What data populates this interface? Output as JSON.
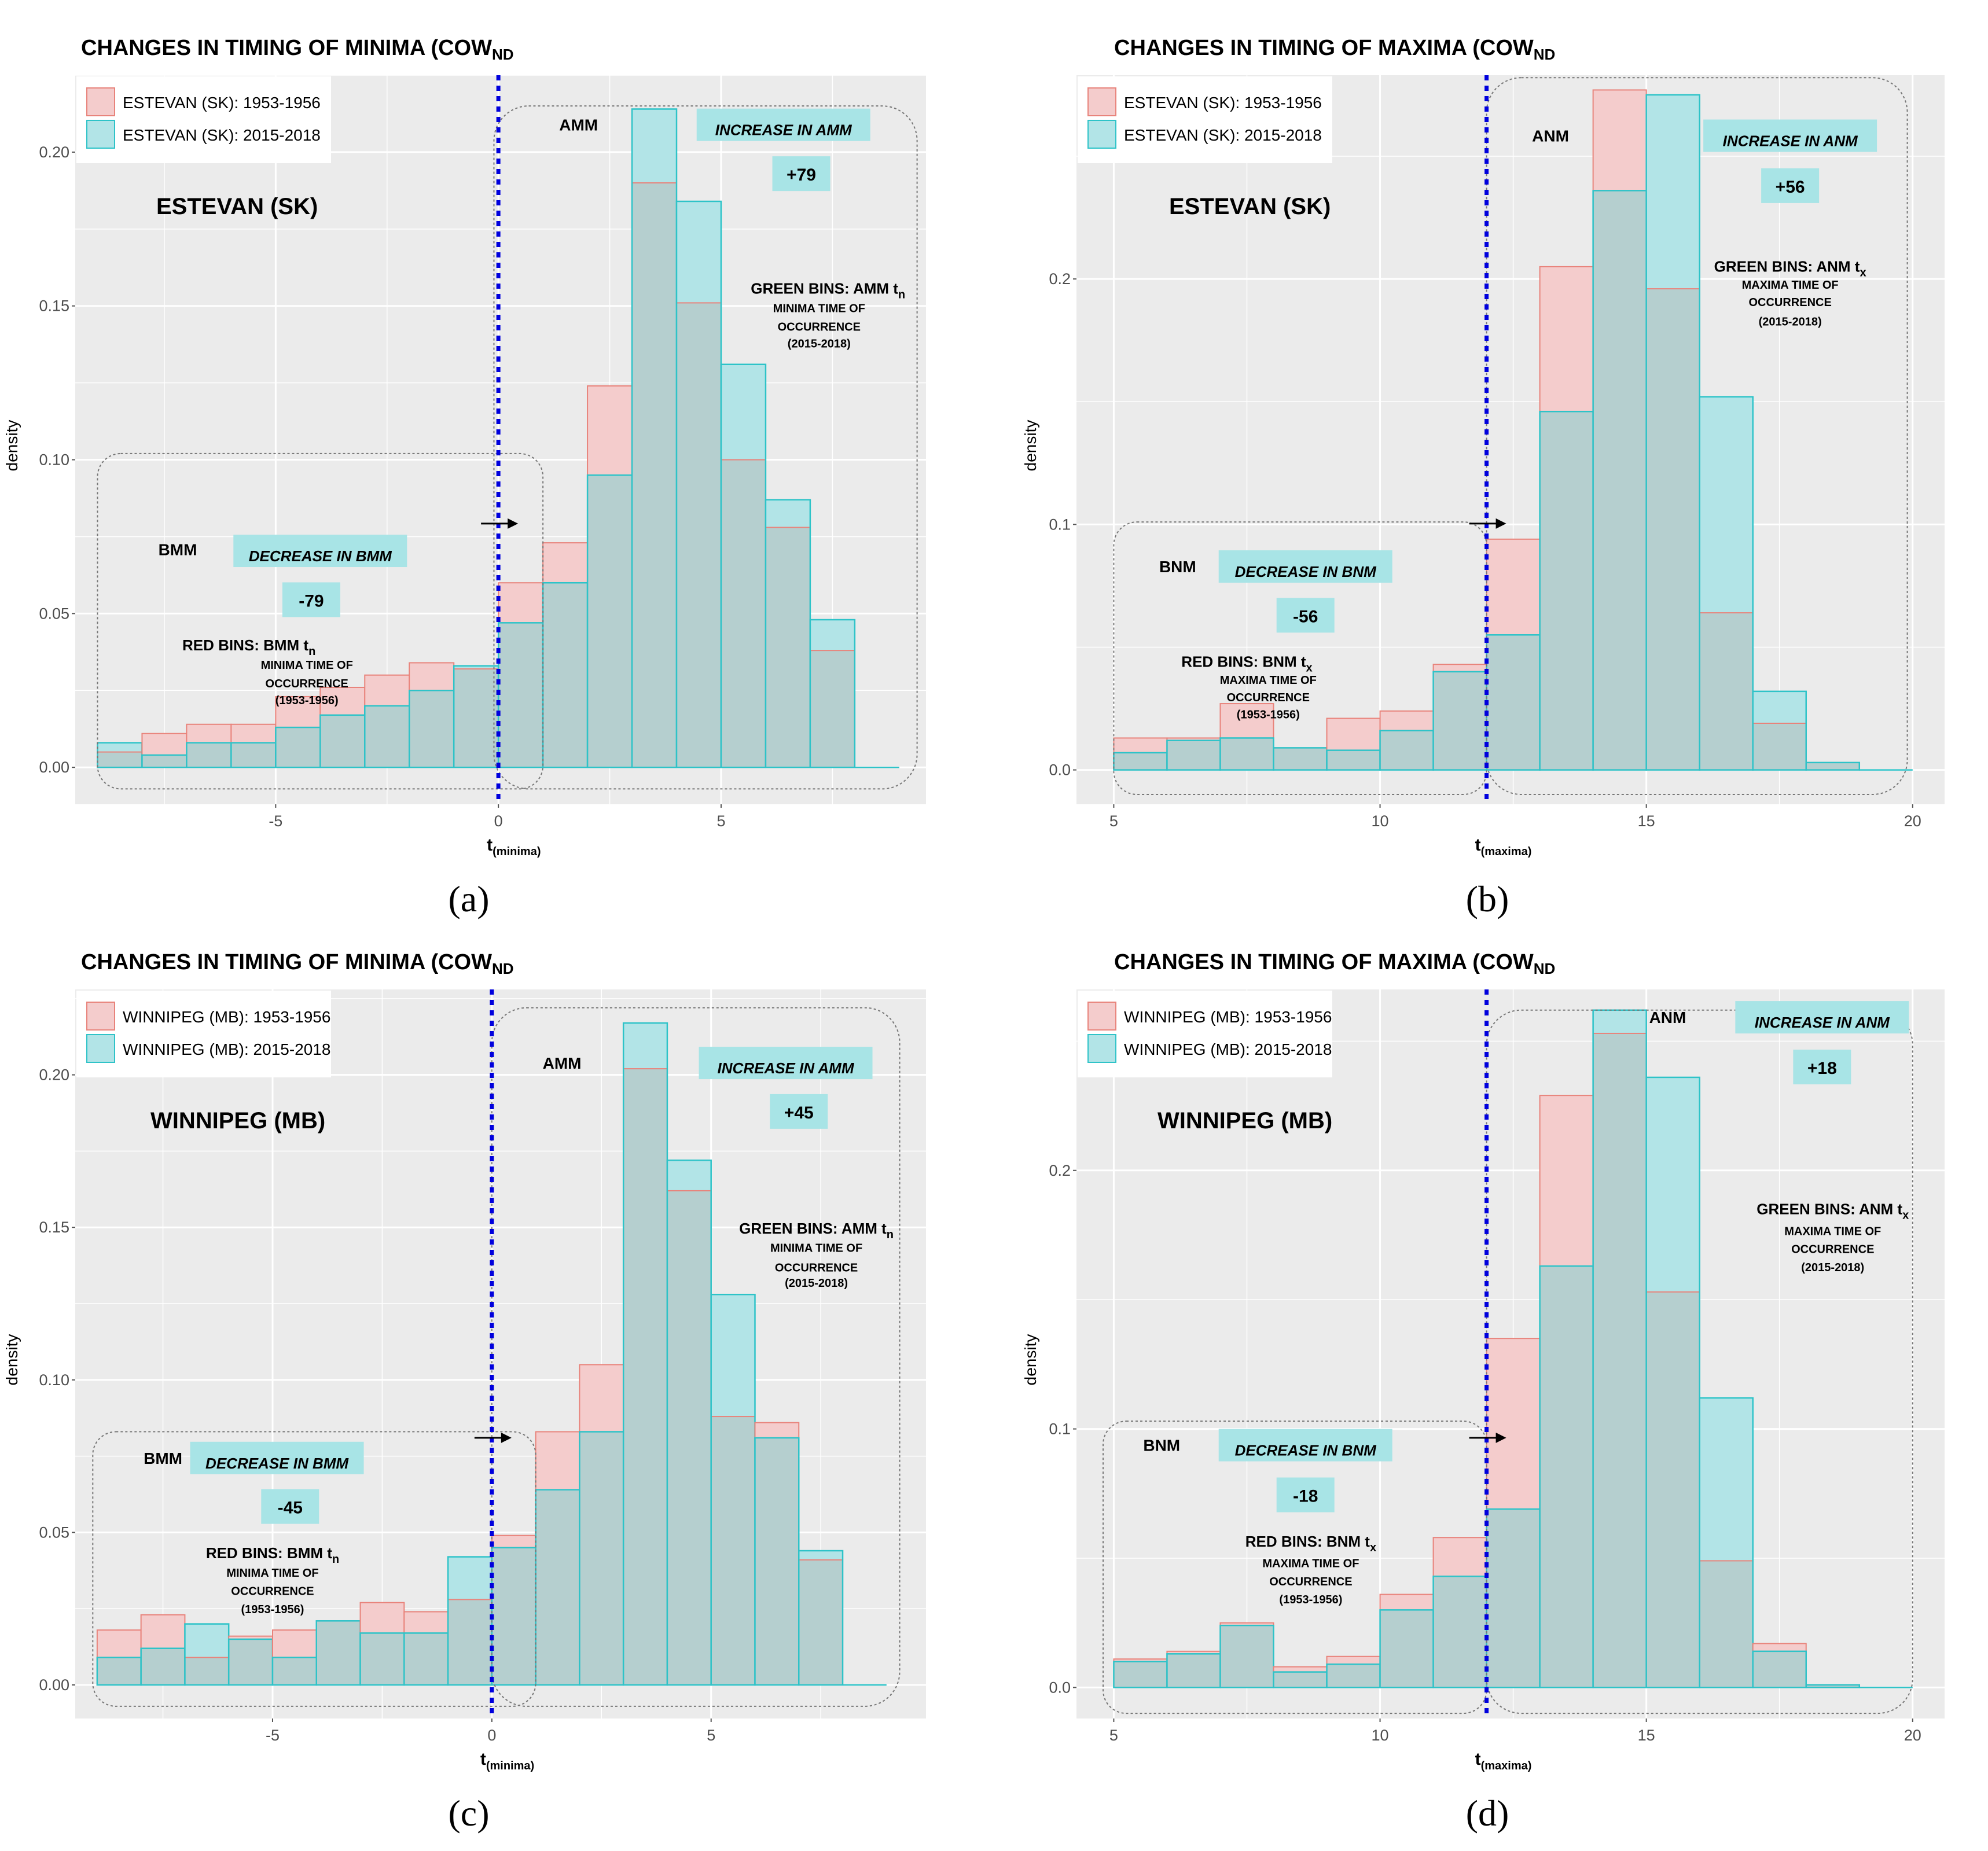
{
  "colors": {
    "red_fill": "#f4cccc",
    "red_line": "#e8837b",
    "cyan_fill": "#b2e4e7",
    "cyan_line": "#2ec3c8",
    "overlap_fill": "#b5cfcf",
    "panel_bg": "#ebebeb",
    "grid": "#ffffff",
    "vline": "#0000dd",
    "callout": "#a8e4e6"
  },
  "chart_data": [
    {
      "type": "bar",
      "panel": "(a)",
      "title": "CHANGES IN TIMING OF MINIMA (COW",
      "title_sub": "ND",
      "station": "ESTEVAN (SK)",
      "xlabel": "t",
      "xlabel_sub": "(minima)",
      "ylabel": "density",
      "xlim": [
        -9.5,
        9.6
      ],
      "ylim": [
        -0.012,
        0.225
      ],
      "xticks": [
        -5,
        0,
        5
      ],
      "xtick_labels": [
        "-5",
        "0",
        "5"
      ],
      "yticks": [
        0,
        0.05,
        0.1,
        0.15,
        0.2
      ],
      "ytick_labels": [
        "0.00",
        "0.05",
        "0.10",
        "0.15",
        "0.20"
      ],
      "bin_start": -9.0,
      "bin_width": 1.0,
      "x_end": 9.0,
      "vline_x": 0,
      "series": [
        {
          "name": "ESTEVAN (SK): 1953-1956",
          "values": [
            0.005,
            0.011,
            0.014,
            0.014,
            0.023,
            0.026,
            0.03,
            0.034,
            0.032,
            0.06,
            0.073,
            0.124,
            0.19,
            0.151,
            0.1,
            0.078,
            0.038
          ]
        },
        {
          "name": "ESTEVAN (SK): 2015-2018",
          "values": [
            0.008,
            0.004,
            0.008,
            0.008,
            0.013,
            0.017,
            0.02,
            0.025,
            0.033,
            0.047,
            0.06,
            0.095,
            0.214,
            0.184,
            0.131,
            0.087,
            0.048
          ]
        }
      ],
      "left_box": {
        "label": "BMM",
        "callout": "DECREASE IN BMM",
        "value": "-79",
        "bins_title": "RED BINS: BMM t",
        "bins_sub": "n",
        "line1": "MINIMA TIME OF",
        "line2": "OCCURRENCE",
        "line3": "(1953-1956)"
      },
      "right_box": {
        "label": "AMM",
        "callout": "INCREASE IN AMM",
        "value": "+79",
        "bins_title": "GREEN BINS: AMM t",
        "bins_sub": "n",
        "line1": "MINIMA TIME OF",
        "line2": "OCCURRENCE",
        "line3": "(2015-2018)"
      }
    },
    {
      "type": "bar",
      "panel": "(b)",
      "title": "CHANGES IN TIMING OF MAXIMA (COW",
      "title_sub": "ND",
      "station": "ESTEVAN (SK)",
      "xlabel": "t",
      "xlabel_sub": "(maxima)",
      "ylabel": "density",
      "xlim": [
        4.3,
        20.6
      ],
      "ylim": [
        -0.014,
        0.283
      ],
      "xticks": [
        5,
        10,
        15,
        20
      ],
      "xtick_labels": [
        "5",
        "10",
        "15",
        "20"
      ],
      "yticks": [
        0,
        0.1,
        0.2
      ],
      "ytick_labels": [
        "0.0",
        "0.1",
        "0.2"
      ],
      "bin_start": 5.0,
      "bin_width": 1.0,
      "x_end": 20.0,
      "vline_x": 12.0,
      "series": [
        {
          "name": "ESTEVAN (SK): 1953-1956",
          "values": [
            0.013,
            0.013,
            0.027,
            0.009,
            0.021,
            0.024,
            0.043,
            0.094,
            0.205,
            0.277,
            0.196,
            0.064,
            0.019,
            0.003
          ]
        },
        {
          "name": "ESTEVAN (SK): 2015-2018",
          "values": [
            0.007,
            0.012,
            0.013,
            0.009,
            0.008,
            0.016,
            0.04,
            0.055,
            0.146,
            0.236,
            0.275,
            0.152,
            0.032,
            0.003
          ]
        }
      ],
      "left_box": {
        "label": "BNM",
        "callout": "DECREASE IN BNM",
        "value": "-56",
        "bins_title": "RED BINS: BNM t",
        "bins_sub": "x",
        "line1": "MAXIMA TIME OF",
        "line2": "OCCURRENCE",
        "line3": "(1953-1956)"
      },
      "right_box": {
        "label": "ANM",
        "callout": "INCREASE IN ANM",
        "value": "+56",
        "bins_title": "GREEN BINS: ANM t",
        "bins_sub": "x",
        "line1": "MAXIMA TIME OF",
        "line2": "OCCURRENCE",
        "line3": "(2015-2018)"
      }
    },
    {
      "type": "bar",
      "panel": "(c)",
      "title": "CHANGES IN TIMING OF MINIMA (COW",
      "title_sub": "ND",
      "station": "WINNIPEG (MB)",
      "xlabel": "t",
      "xlabel_sub": "(minima)",
      "ylabel": "density",
      "xlim": [
        -9.5,
        9.9
      ],
      "ylim": [
        -0.011,
        0.228
      ],
      "xticks": [
        -5,
        0,
        5
      ],
      "xtick_labels": [
        "-5",
        "0",
        "5"
      ],
      "yticks": [
        0,
        0.05,
        0.1,
        0.15,
        0.2
      ],
      "ytick_labels": [
        "0.00",
        "0.05",
        "0.10",
        "0.15",
        "0.20"
      ],
      "bin_start": -9.0,
      "bin_width": 1.0,
      "x_end": 9.0,
      "vline_x": 0,
      "series": [
        {
          "name": "WINNIPEG (MB): 1953-1956",
          "values": [
            0.018,
            0.023,
            0.009,
            0.016,
            0.018,
            0.021,
            0.027,
            0.024,
            0.028,
            0.049,
            0.083,
            0.105,
            0.202,
            0.162,
            0.088,
            0.086,
            0.041
          ]
        },
        {
          "name": "WINNIPEG (MB): 2015-2018",
          "values": [
            0.009,
            0.012,
            0.02,
            0.015,
            0.009,
            0.021,
            0.017,
            0.017,
            0.042,
            0.045,
            0.064,
            0.083,
            0.217,
            0.172,
            0.128,
            0.081,
            0.044
          ]
        }
      ],
      "left_box": {
        "label": "BMM",
        "callout": "DECREASE IN BMM",
        "value": "-45",
        "bins_title": "RED BINS: BMM t",
        "bins_sub": "n",
        "line1": "MINIMA TIME OF",
        "line2": "OCCURRENCE",
        "line3": "(1953-1956)"
      },
      "right_box": {
        "label": "AMM",
        "callout": "INCREASE IN AMM",
        "value": "+45",
        "bins_title": "GREEN BINS: AMM t",
        "bins_sub": "n",
        "line1": "MINIMA TIME OF",
        "line2": "OCCURRENCE",
        "line3": "(2015-2018)"
      }
    },
    {
      "type": "bar",
      "panel": "(d)",
      "title": "CHANGES IN TIMING OF MAXIMA (COW",
      "title_sub": "ND",
      "station": "WINNIPEG (MB)",
      "xlabel": "t",
      "xlabel_sub": "(maxima)",
      "ylabel": "density",
      "xlim": [
        4.3,
        20.6
      ],
      "ylim": [
        -0.012,
        0.27
      ],
      "xticks": [
        5,
        10,
        15,
        20
      ],
      "xtick_labels": [
        "5",
        "10",
        "15",
        "20"
      ],
      "yticks": [
        0,
        0.1,
        0.2
      ],
      "ytick_labels": [
        "0.0",
        "0.1",
        "0.2"
      ],
      "bin_start": 5.0,
      "bin_width": 1.0,
      "x_end": 20.0,
      "vline_x": 12.0,
      "series": [
        {
          "name": "WINNIPEG (MB): 1953-1956",
          "values": [
            0.011,
            0.014,
            0.025,
            0.008,
            0.012,
            0.036,
            0.058,
            0.135,
            0.229,
            0.253,
            0.153,
            0.049,
            0.017,
            0.001
          ]
        },
        {
          "name": "WINNIPEG (MB): 2015-2018",
          "values": [
            0.01,
            0.013,
            0.024,
            0.006,
            0.009,
            0.03,
            0.043,
            0.069,
            0.163,
            0.262,
            0.236,
            0.112,
            0.014,
            0.001
          ]
        }
      ],
      "left_box": {
        "label": "BNM",
        "callout": "DECREASE IN BNM",
        "value": "-18",
        "bins_title": "RED BINS: BNM t",
        "bins_sub": "x",
        "line1": "MAXIMA TIME OF",
        "line2": "OCCURRENCE",
        "line3": "(1953-1956)"
      },
      "right_box": {
        "label": "ANM",
        "callout": "INCREASE IN ANM",
        "value": "+18",
        "bins_title": "GREEN BINS: ANM t",
        "bins_sub": "x",
        "line1": "MAXIMA TIME OF",
        "line2": "OCCURRENCE",
        "line3": "(2015-2018)"
      }
    }
  ]
}
